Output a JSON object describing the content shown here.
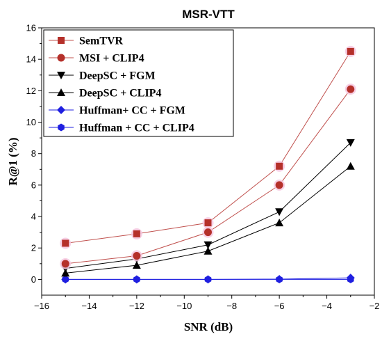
{
  "chart_data": {
    "type": "line",
    "title": "MSR-VTT",
    "xlabel": "SNR (dB)",
    "ylabel": "R@1 (%)",
    "xlim": [
      -16,
      -2
    ],
    "ylim": [
      -1,
      16
    ],
    "xticks": [
      -16,
      -14,
      -12,
      -10,
      -8,
      -6,
      -4,
      -2
    ],
    "yticks": [
      0,
      2,
      4,
      6,
      8,
      10,
      12,
      14,
      16
    ],
    "xtick_labels": [
      "−16",
      "−14",
      "−12",
      "−10",
      "−8",
      "−6",
      "−4",
      "−2"
    ],
    "ytick_labels": [
      "0",
      "2",
      "4",
      "6",
      "8",
      "10",
      "12",
      "14",
      "16"
    ],
    "grid": false,
    "legend_position": "top-left",
    "x": [
      -15,
      -12,
      -9,
      -6,
      -3
    ],
    "series": [
      {
        "name": "SemTVR",
        "values": [
          2.3,
          2.9,
          3.6,
          7.2,
          14.5
        ],
        "color": "#b5302a",
        "line_color": "#c0504d",
        "marker": "square",
        "halo": true
      },
      {
        "name": "MSI + CLIP4",
        "values": [
          1.0,
          1.5,
          3.0,
          6.0,
          12.1
        ],
        "color": "#b5302a",
        "line_color": "#c0504d",
        "marker": "circle",
        "halo": true
      },
      {
        "name": "DeepSC + FGM",
        "values": [
          0.7,
          1.3,
          2.2,
          4.3,
          8.7
        ],
        "color": "#000000",
        "line_color": "#000000",
        "marker": "triangle-down",
        "halo": false
      },
      {
        "name": "DeepSC + CLIP4",
        "values": [
          0.4,
          0.9,
          1.8,
          3.6,
          7.2
        ],
        "color": "#000000",
        "line_color": "#000000",
        "marker": "triangle-up",
        "halo": false
      },
      {
        "name": "Huffman+ CC + FGM",
        "values": [
          0.0,
          0.0,
          0.0,
          0.02,
          0.1
        ],
        "color": "#1f1fe0",
        "line_color": "#1f1fe0",
        "marker": "diamond",
        "halo": false
      },
      {
        "name": "Huffman + CC + CLIP4",
        "values": [
          0.0,
          0.0,
          0.0,
          0.0,
          0.0
        ],
        "color": "#1f1fe0",
        "line_color": "#1f1fe0",
        "marker": "hexagon",
        "halo": false
      }
    ]
  }
}
